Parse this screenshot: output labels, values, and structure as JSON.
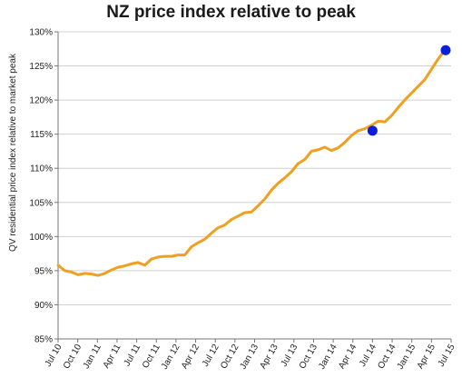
{
  "chart_data": {
    "type": "line",
    "title": "NZ price index relative to peak",
    "xlabel": "",
    "ylabel": "QV residential price index relative to market peak",
    "ylim": [
      85,
      130
    ],
    "yticks": [
      "85%",
      "90%",
      "95%",
      "100%",
      "105%",
      "110%",
      "115%",
      "120%",
      "125%",
      "130%"
    ],
    "xticks": [
      "Jul 10",
      "Oct 10",
      "Jan 11",
      "Apr 11",
      "Jul 11",
      "Oct 11",
      "Jan 12",
      "Apr 12",
      "Jul 12",
      "Oct 12",
      "Jan 13",
      "Apr 13",
      "Jul 13",
      "Oct 13",
      "Jan 14",
      "Apr 14",
      "Jul 14",
      "Oct 14",
      "Jan 15",
      "Apr 15",
      "Jul 15"
    ],
    "grid": "horizontal",
    "line_color": "#f0a020",
    "marker_color": "#0a1fd8",
    "series": [
      {
        "values": [
          95.8,
          95.0,
          94.8,
          94.4,
          94.6,
          94.5,
          94.3,
          94.6,
          95.1,
          95.5,
          95.7,
          96.0,
          96.2,
          95.8,
          96.7,
          97.0,
          97.1,
          97.1,
          97.3,
          97.3,
          98.5,
          99.1,
          99.6,
          100.5,
          101.3,
          101.7,
          102.5,
          103.0,
          103.5,
          103.6,
          104.5,
          105.5,
          106.8,
          107.8,
          108.6,
          109.5,
          110.7,
          111.3,
          112.5,
          112.7,
          113.1,
          112.6,
          113.0,
          113.8,
          114.8,
          115.5,
          115.8,
          116.3,
          116.9,
          116.8,
          117.7,
          118.9,
          120.0,
          121.0,
          122.0,
          123.0,
          124.5,
          126.0,
          127.3
        ]
      }
    ],
    "highlighted_points": [
      {
        "x": "Jul 14",
        "y": 115.5
      },
      {
        "x": "Jul 15",
        "y": 127.3
      }
    ]
  }
}
